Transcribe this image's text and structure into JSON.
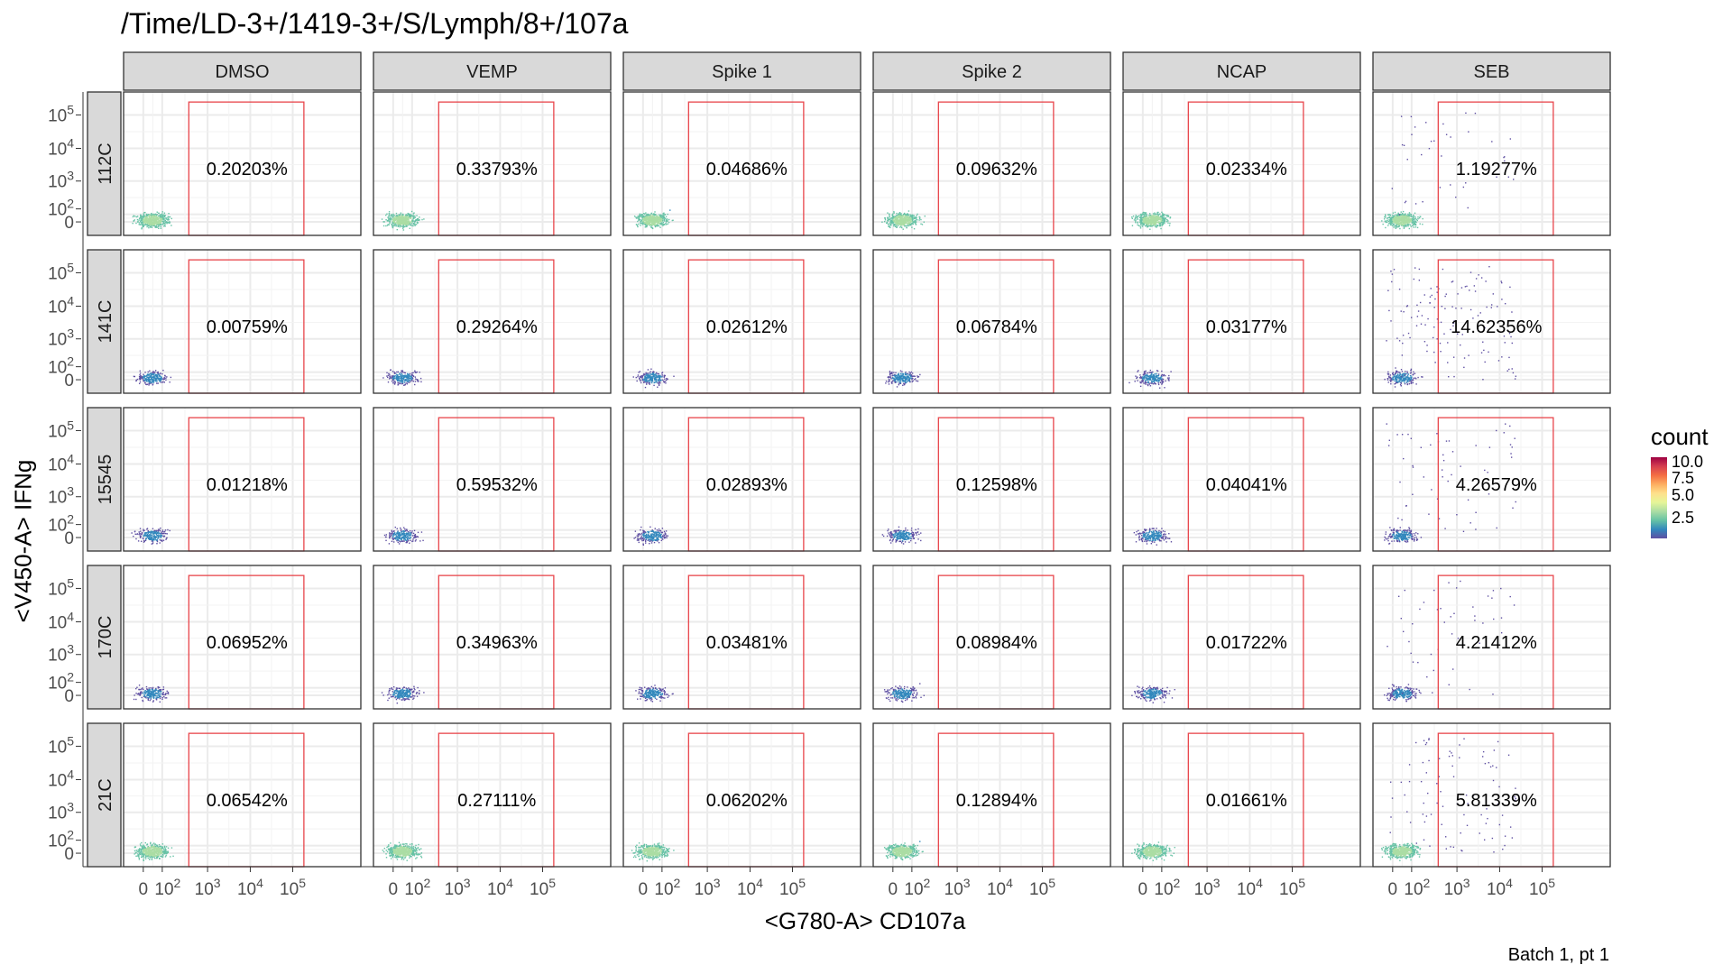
{
  "title": "/Time/LD-3+/1419-3+/S/Lymph/8+/107a",
  "xlabel": "<G780-A> CD107a",
  "ylabel": "<V450-A> IFNg",
  "caption": "Batch 1, pt 1",
  "colors": {
    "gate": "#e8454b",
    "strip_bg": "#d9d9d9",
    "grid": "#ebebeb",
    "panel_border": "#333333",
    "scale_low": "#5e4fa2",
    "scale_high": "#9e0142"
  },
  "legend": {
    "title": "count",
    "ticks": [
      "10.0",
      "7.5",
      "5.0",
      "2.5"
    ],
    "colormap": "Spectral (reversed)"
  },
  "chart_data": {
    "type": "scatter",
    "facet_cols": [
      "DMSO",
      "VEMP",
      "Spike 1",
      "Spike 2",
      "NCAP",
      "SEB"
    ],
    "facet_rows": [
      "112C",
      "141C",
      "15545",
      "170C",
      "21C"
    ],
    "x_axis": {
      "label": "<G780-A> CD107a",
      "scale": "biexponential",
      "tick_labels": [
        "0",
        "10^2",
        "10^3",
        "10^4",
        "10^5"
      ]
    },
    "y_axis": {
      "label": "<V450-A> IFNg",
      "scale": "biexponential",
      "tick_labels": [
        "0",
        "10^2",
        "10^3",
        "10^4",
        "10^5"
      ]
    },
    "gate": {
      "shape": "rectangle",
      "color": "red"
    },
    "gate_percentages": [
      [
        "0.20203%",
        "0.33793%",
        "0.04686%",
        "0.09632%",
        "0.02334%",
        "1.19277%"
      ],
      [
        "0.00759%",
        "0.29264%",
        "0.02612%",
        "0.06784%",
        "0.03177%",
        "14.62356%"
      ],
      [
        "0.01218%",
        "0.59532%",
        "0.02893%",
        "0.12598%",
        "0.04041%",
        "4.26579%"
      ],
      [
        "0.06952%",
        "0.34963%",
        "0.03481%",
        "0.08984%",
        "0.01722%",
        "4.21412%"
      ],
      [
        "0.06542%",
        "0.27111%",
        "0.06202%",
        "0.12894%",
        "0.01661%",
        "5.81339%"
      ]
    ],
    "legend": {
      "title": "count",
      "range": [
        1,
        10
      ],
      "placement": "right"
    },
    "grid": true
  }
}
